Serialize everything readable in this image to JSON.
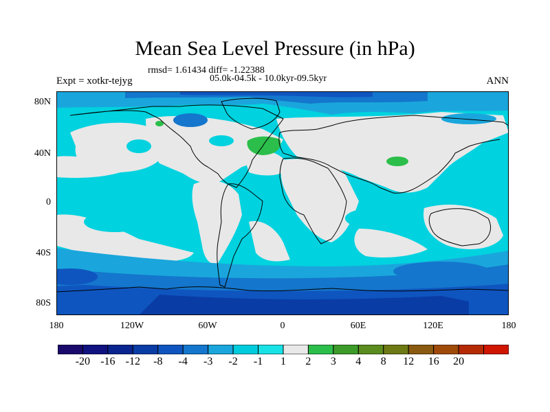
{
  "title": "Mean Sea Level Pressure (in hPa)",
  "stats": "rmsd= 1.61434 diff= -1.22388",
  "subtitle": "05.0k-04.5k - 10.0kyr-09.5kyr",
  "expt": "Expt = xotkr-tejyg",
  "season": "ANN",
  "lat_labels": [
    "80N",
    "40N",
    "0",
    "40S",
    "80S"
  ],
  "lon_labels": [
    "180",
    "120W",
    "60W",
    "0",
    "60E",
    "120E",
    "180"
  ],
  "colorbar": {
    "colors": [
      "#1a0a6b",
      "#10127f",
      "#0a2590",
      "#0a3ca6",
      "#0f55bf",
      "#1476cc",
      "#1aa6dc",
      "#00ccdd",
      "#19e2e6",
      "#e8e8e8",
      "#2bbe4a",
      "#3d9b2a",
      "#5b8c1e",
      "#6e7a14",
      "#8a5a10",
      "#a04a0a",
      "#b52a05",
      "#d01500"
    ],
    "labels": [
      "-20",
      "-16",
      "-12",
      "-8",
      "-4",
      "-3",
      "-2",
      "-1",
      "1",
      "2",
      "3",
      "4",
      "8",
      "12",
      "16",
      "20"
    ]
  },
  "palette": {
    "ocean_neg1": "#00d2df",
    "ocean_neg2": "#1aa6dc",
    "ocean_neg3": "#1476cc",
    "ocean_neg4": "#0f55bf",
    "ocean_neg8": "#0a3ca6",
    "near_zero": "#e8e8e8",
    "pos_1_2": "#2bbe4a"
  }
}
